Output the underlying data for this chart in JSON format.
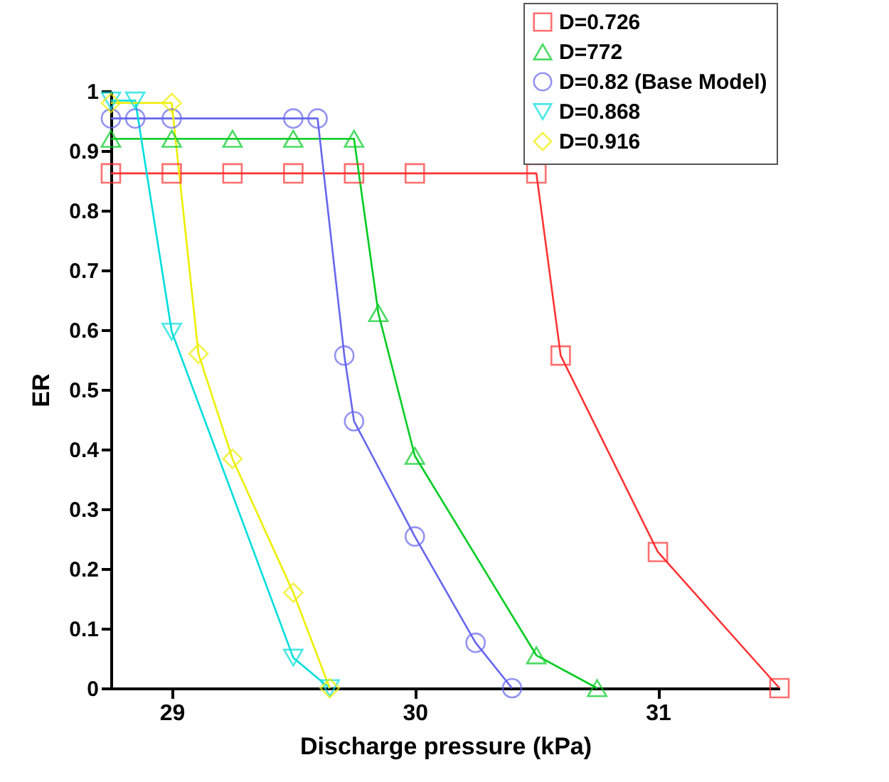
{
  "chart_data": {
    "type": "line",
    "xlabel": "Discharge pressure (kPa)",
    "ylabel": "ER",
    "xlim": [
      28.75,
      31.5
    ],
    "ylim": [
      0,
      1
    ],
    "xticks": [
      29,
      30,
      31
    ],
    "yticks": [
      0,
      0.1,
      0.2,
      0.3,
      0.4,
      0.5,
      0.6,
      0.7,
      0.8,
      0.9,
      1
    ],
    "grid": false,
    "legend": "top right",
    "series": [
      {
        "name": "D=0.726",
        "color": "#ff3333",
        "marker": "square",
        "x": [
          28.75,
          29.0,
          29.25,
          29.5,
          29.75,
          30.0,
          30.5,
          30.6,
          31.0,
          31.5
        ],
        "values": [
          0.862,
          0.862,
          0.862,
          0.862,
          0.862,
          0.862,
          0.862,
          0.557,
          0.228,
          0
        ]
      },
      {
        "name": "D=772",
        "color": "#00cc22",
        "marker": "triangle",
        "x": [
          28.75,
          29.0,
          29.25,
          29.5,
          29.75,
          29.85,
          30.0,
          30.5,
          30.75
        ],
        "values": [
          0.92,
          0.92,
          0.92,
          0.92,
          0.92,
          0.628,
          0.389,
          0.055,
          0
        ]
      },
      {
        "name": "D=0.82 (Base Model)",
        "color": "#6666ee",
        "marker": "circle",
        "x": [
          28.75,
          28.85,
          29.0,
          29.5,
          29.6,
          29.71,
          29.75,
          30.0,
          30.25,
          30.4
        ],
        "values": [
          0.954,
          0.954,
          0.954,
          0.954,
          0.954,
          0.557,
          0.447,
          0.254,
          0.076,
          0
        ]
      },
      {
        "name": "D=0.868",
        "color": "#00dddd",
        "marker": "triangle-down",
        "x": [
          28.75,
          28.85,
          29.0,
          29.5,
          29.65
        ],
        "values": [
          0.984,
          0.984,
          0.597,
          0.051,
          0
        ]
      },
      {
        "name": "D=0.916",
        "color": "#eeee00",
        "marker": "diamond",
        "x": [
          28.75,
          29.0,
          29.11,
          29.25,
          29.5,
          29.65
        ],
        "values": [
          0.98,
          0.98,
          0.56,
          0.384,
          0.16,
          0
        ]
      }
    ]
  }
}
